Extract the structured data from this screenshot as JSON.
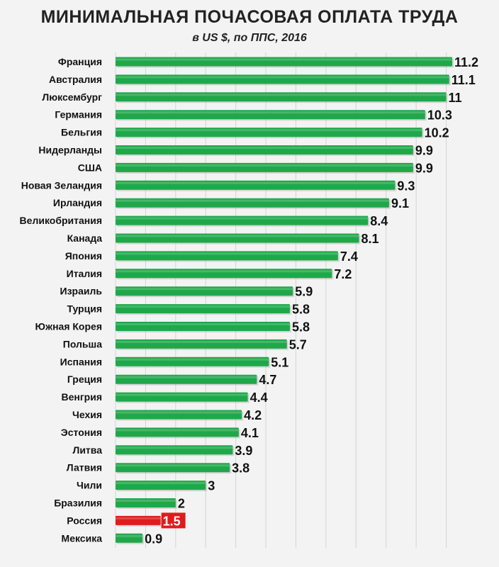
{
  "chart_data": {
    "type": "bar",
    "orientation": "horizontal",
    "title": "МИНИМАЛЬНАЯ ПОЧАСОВАЯ ОПЛАТА ТРУДА",
    "subtitle": "в US $, по ППС, 2016",
    "categories": [
      "Франция",
      "Австралия",
      "Люксембург",
      "Германия",
      "Бельгия",
      "Нидерланды",
      "США",
      "Новая Зеландия",
      "Ирландия",
      "Великобритания",
      "Канада",
      "Япония",
      "Италия",
      "Израиль",
      "Турция",
      "Южная Корея",
      "Польша",
      "Испания",
      "Греция",
      "Венгрия",
      "Чехия",
      "Эстония",
      "Литва",
      "Латвия",
      "Чили",
      "Бразилия",
      "Россия",
      "Мексика"
    ],
    "values": [
      11.2,
      11.1,
      11,
      10.3,
      10.2,
      9.9,
      9.9,
      9.3,
      9.1,
      8.4,
      8.1,
      7.4,
      7.2,
      5.9,
      5.8,
      5.8,
      5.7,
      5.1,
      4.7,
      4.4,
      4.2,
      4.1,
      3.9,
      3.8,
      3,
      2,
      1.5,
      0.9
    ],
    "value_labels": [
      "11.2",
      "11.1",
      "11",
      "10.3",
      "10.2",
      "9.9",
      "9.9",
      "9.3",
      "9.1",
      "8.4",
      "8.1",
      "7.4",
      "7.2",
      "5.9",
      "5.8",
      "5.8",
      "5.7",
      "5.1",
      "4.7",
      "4.4",
      "4.2",
      "4.1",
      "3.9",
      "3.8",
      "3",
      "2",
      "1.5",
      "0.9"
    ],
    "highlight": "Россия",
    "xlim": [
      0,
      11.2
    ],
    "grid": "vertical",
    "colors": {
      "bar": "#1fa84a",
      "highlight": "#e01b1b",
      "highlight_label_bg": "#e01b1b",
      "grid": "#d4d4d4"
    }
  }
}
